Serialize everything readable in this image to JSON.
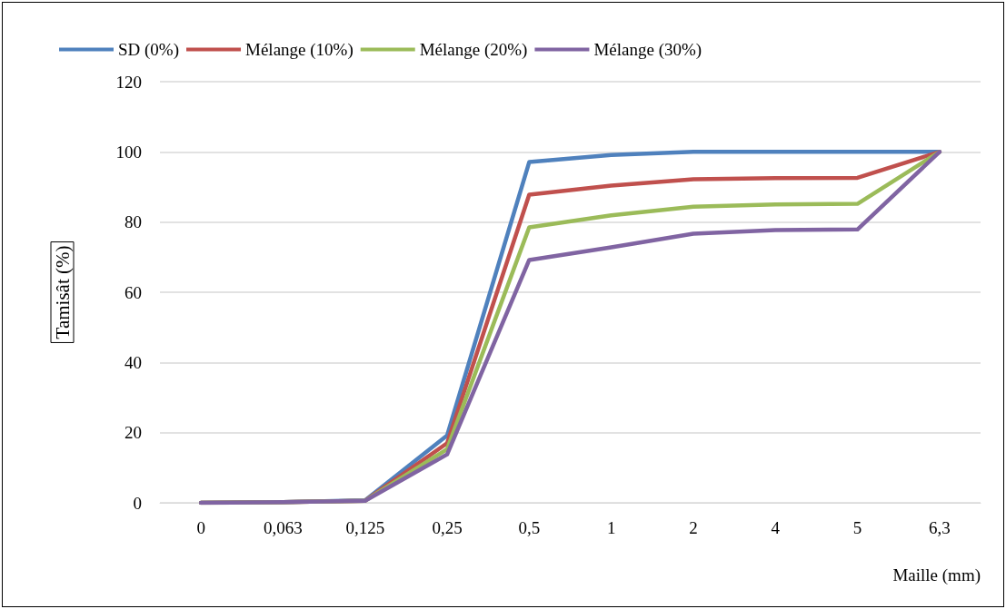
{
  "chart_data": {
    "type": "line",
    "xlabel": "Maille (mm)",
    "ylabel": "Tamisât (%)",
    "categories": [
      "0",
      "0,063",
      "0,125",
      "0,25",
      "0,5",
      "1",
      "2",
      "4",
      "5",
      "6,3"
    ],
    "series": [
      {
        "name": "SD (0%)",
        "color": "#4f81bd",
        "values": [
          0,
          0.2,
          0.7,
          19.2,
          97.1,
          99.1,
          100,
          100,
          100,
          100
        ]
      },
      {
        "name": "Mélange (10%)",
        "color": "#c0504d",
        "values": [
          0,
          0.2,
          0.6,
          17,
          87.8,
          90.4,
          92.2,
          92.5,
          92.6,
          100
        ]
      },
      {
        "name": "Mélange (20%)",
        "color": "#9bbb59",
        "values": [
          0,
          0.2,
          0.6,
          15.3,
          78.5,
          81.9,
          84.4,
          85,
          85.2,
          100
        ]
      },
      {
        "name": "Mélange (30%)",
        "color": "#8064a2",
        "values": [
          0,
          0.2,
          0.6,
          13.8,
          69.2,
          72.8,
          76.7,
          77.7,
          77.9,
          100
        ]
      }
    ],
    "ylim": [
      0,
      120
    ],
    "yticks": [
      0,
      20,
      40,
      60,
      80,
      100,
      120
    ],
    "grid": "y",
    "legend": "top",
    "marker": "none",
    "line_style": "solid"
  }
}
